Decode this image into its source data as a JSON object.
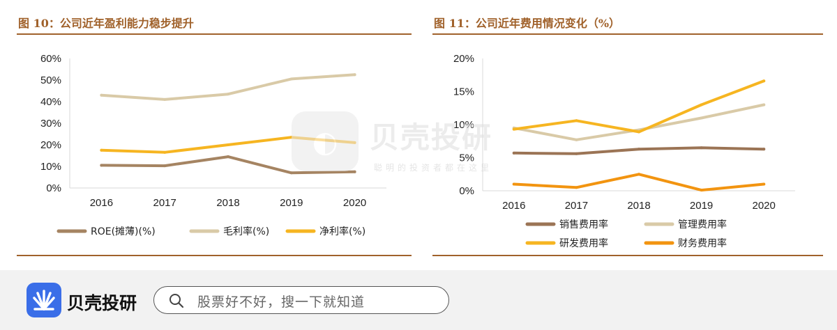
{
  "left_panel": {
    "title": "图 10：公司近年盈利能力稳步提升"
  },
  "right_panel": {
    "title": "图 11：公司近年费用情况变化（%）"
  },
  "chart_data": [
    {
      "type": "line",
      "categories": [
        "2016",
        "2017",
        "2018",
        "2019",
        "2020"
      ],
      "ylim": [
        0,
        60
      ],
      "yticks": [
        0,
        10,
        20,
        30,
        40,
        50,
        60
      ],
      "ytick_labels": [
        "0%",
        "10%",
        "20%",
        "30%",
        "40%",
        "50%",
        "60%"
      ],
      "grid": false,
      "legend_position": "bottom",
      "series": [
        {
          "name": "ROE(摊薄)(%)",
          "color": "#a58462",
          "values": [
            10.5,
            10.3,
            14.5,
            7.0,
            7.5
          ]
        },
        {
          "name": "毛利率(%)",
          "color": "#d9caa7",
          "values": [
            43.0,
            41.0,
            43.5,
            50.5,
            52.5
          ]
        },
        {
          "name": "净利率(%)",
          "color": "#f6b521",
          "values": [
            17.5,
            16.5,
            20.0,
            23.5,
            21.0
          ]
        }
      ]
    },
    {
      "type": "line",
      "categories": [
        "2016",
        "2017",
        "2018",
        "2019",
        "2020"
      ],
      "ylim": [
        0,
        20
      ],
      "yticks": [
        0,
        5,
        10,
        15,
        20
      ],
      "ytick_labels": [
        "0%",
        "5%",
        "10%",
        "15%",
        "20%"
      ],
      "grid": false,
      "legend_position": "bottom",
      "series": [
        {
          "name": "销售费用率",
          "color": "#9b7455",
          "values": [
            5.7,
            5.6,
            6.3,
            6.5,
            6.3
          ]
        },
        {
          "name": "管理费用率",
          "color": "#d9caa7",
          "values": [
            9.5,
            7.7,
            9.2,
            11.0,
            13.0
          ]
        },
        {
          "name": "研发费用率",
          "color": "#f6b521",
          "values": [
            9.3,
            10.6,
            8.9,
            13.0,
            16.6
          ]
        },
        {
          "name": "财务费用率",
          "color": "#f29410",
          "values": [
            1.0,
            0.5,
            2.5,
            0.1,
            1.0
          ]
        }
      ]
    }
  ],
  "watermark": {
    "brand": "贝壳投研",
    "slogan": "聪明的投资者都在这里"
  },
  "bottom_bar": {
    "brand": "贝壳投研",
    "search_placeholder": "股票好不好，搜一下就知道"
  }
}
